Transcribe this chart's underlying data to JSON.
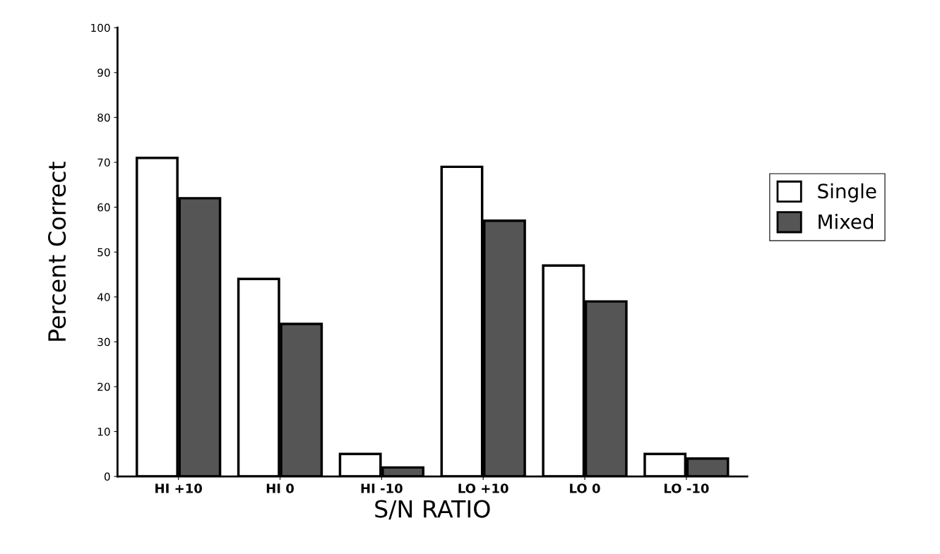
{
  "chart_data": {
    "type": "bar",
    "xlabel": "S/N RATIO",
    "ylabel": "Percent Correct",
    "categories": [
      "HI +10",
      "HI 0",
      "HI -10",
      "LO +10",
      "LO 0",
      "LO -10"
    ],
    "series": [
      {
        "name": "Single",
        "color": "#ffffff",
        "values": [
          71,
          44,
          5,
          69,
          47,
          5
        ]
      },
      {
        "name": "Mixed",
        "color": "#555555",
        "values": [
          62,
          34,
          2,
          57,
          39,
          4
        ]
      }
    ],
    "ylim": [
      0,
      100
    ],
    "yticks": [
      0,
      10,
      20,
      30,
      40,
      50,
      60,
      70,
      80,
      90,
      100
    ],
    "grid": false,
    "legend": "right"
  }
}
